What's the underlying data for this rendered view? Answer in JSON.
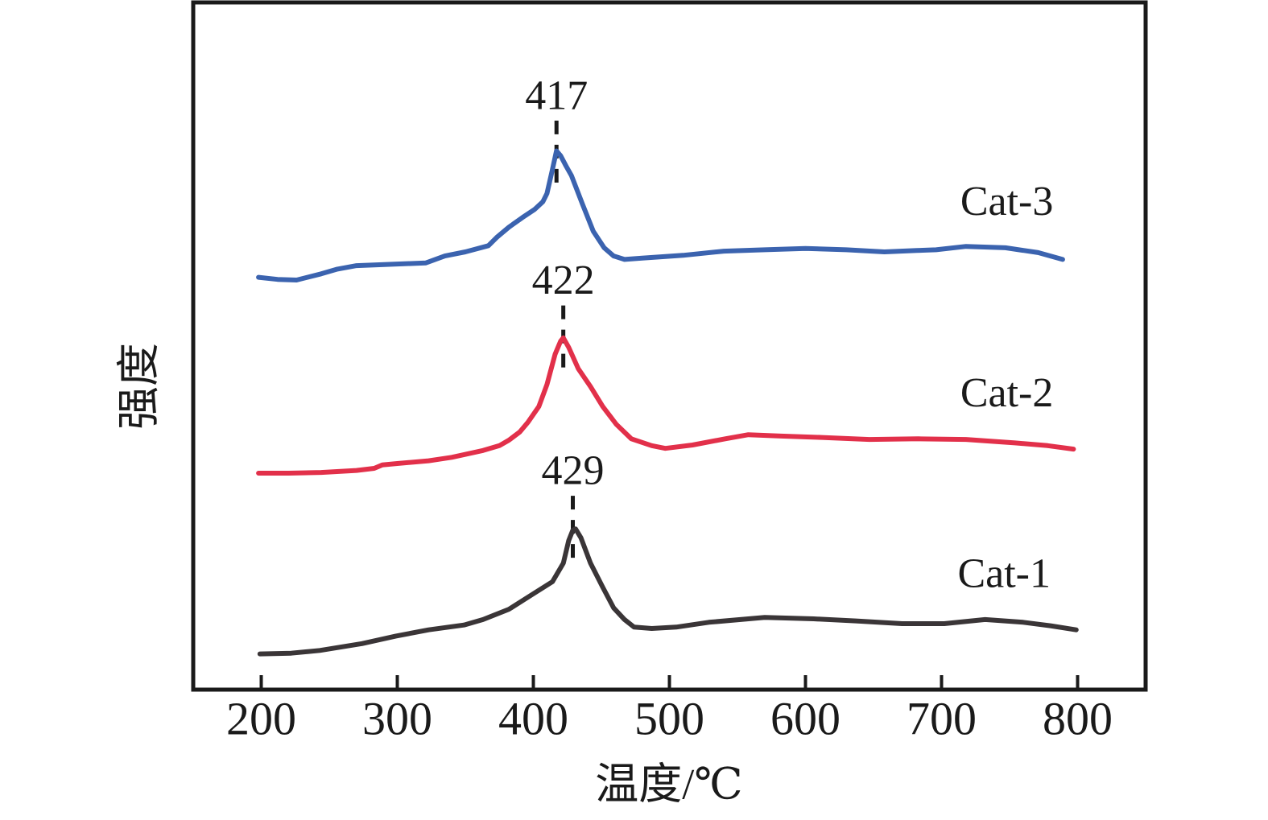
{
  "figure": {
    "background": "#ffffff",
    "axis_color": "#1a1a1a"
  },
  "chart_data": {
    "type": "line",
    "title": "",
    "xlabel": "温度/℃",
    "ylabel": "强度",
    "xlim": [
      150,
      850
    ],
    "x_ticks": [
      200,
      300,
      400,
      500,
      600,
      700,
      800
    ],
    "y_axis_note": "intensity, arbitrary units, no ticks; y values below are fraction of plot height",
    "grid": false,
    "legend_position": "labels next to each curve inside plot",
    "series": [
      {
        "name": "Cat-3",
        "color": "#3b63af",
        "peak_temp": 417,
        "label_pos": {
          "temp": 748,
          "u": 0.705
        },
        "points": [
          [
            198,
            0.6
          ],
          [
            212,
            0.597
          ],
          [
            226,
            0.596
          ],
          [
            244,
            0.605
          ],
          [
            256,
            0.612
          ],
          [
            270,
            0.617
          ],
          [
            283,
            0.618
          ],
          [
            296,
            0.619
          ],
          [
            310,
            0.62
          ],
          [
            321,
            0.621
          ],
          [
            335,
            0.631
          ],
          [
            350,
            0.637
          ],
          [
            367,
            0.646
          ],
          [
            373,
            0.658
          ],
          [
            382,
            0.673
          ],
          [
            392,
            0.687
          ],
          [
            401,
            0.699
          ],
          [
            407,
            0.71
          ],
          [
            410,
            0.722
          ],
          [
            414,
            0.757
          ],
          [
            417,
            0.784
          ],
          [
            420,
            0.777
          ],
          [
            424,
            0.762
          ],
          [
            428,
            0.748
          ],
          [
            436,
            0.707
          ],
          [
            444,
            0.667
          ],
          [
            452,
            0.643
          ],
          [
            459,
            0.631
          ],
          [
            467,
            0.626
          ],
          [
            480,
            0.628
          ],
          [
            510,
            0.632
          ],
          [
            540,
            0.638
          ],
          [
            570,
            0.64
          ],
          [
            600,
            0.642
          ],
          [
            630,
            0.64
          ],
          [
            658,
            0.637
          ],
          [
            682,
            0.639
          ],
          [
            696,
            0.64
          ],
          [
            718,
            0.645
          ],
          [
            747,
            0.643
          ],
          [
            771,
            0.636
          ],
          [
            789,
            0.626
          ]
        ]
      },
      {
        "name": "Cat-2",
        "color": "#e2304a",
        "peak_temp": 422,
        "label_pos": {
          "temp": 748,
          "u": 0.426
        },
        "points": [
          [
            198,
            0.315
          ],
          [
            220,
            0.315
          ],
          [
            244,
            0.316
          ],
          [
            270,
            0.319
          ],
          [
            283,
            0.322
          ],
          [
            289,
            0.327
          ],
          [
            300,
            0.329
          ],
          [
            323,
            0.333
          ],
          [
            340,
            0.338
          ],
          [
            363,
            0.348
          ],
          [
            375,
            0.355
          ],
          [
            382,
            0.363
          ],
          [
            390,
            0.375
          ],
          [
            396,
            0.389
          ],
          [
            404,
            0.412
          ],
          [
            410,
            0.444
          ],
          [
            416,
            0.488
          ],
          [
            420,
            0.507
          ],
          [
            422,
            0.512
          ],
          [
            426,
            0.498
          ],
          [
            433,
            0.467
          ],
          [
            442,
            0.441
          ],
          [
            451,
            0.412
          ],
          [
            461,
            0.386
          ],
          [
            472,
            0.365
          ],
          [
            487,
            0.355
          ],
          [
            497,
            0.351
          ],
          [
            517,
            0.356
          ],
          [
            541,
            0.365
          ],
          [
            558,
            0.371
          ],
          [
            582,
            0.369
          ],
          [
            612,
            0.367
          ],
          [
            647,
            0.364
          ],
          [
            683,
            0.365
          ],
          [
            718,
            0.364
          ],
          [
            754,
            0.359
          ],
          [
            778,
            0.355
          ],
          [
            797,
            0.35
          ]
        ]
      },
      {
        "name": "Cat-1",
        "color": "#3a3537",
        "peak_temp": 429,
        "label_pos": {
          "temp": 746,
          "u": 0.163
        },
        "points": [
          [
            199,
            0.052
          ],
          [
            222,
            0.053
          ],
          [
            243,
            0.057
          ],
          [
            274,
            0.067
          ],
          [
            299,
            0.078
          ],
          [
            323,
            0.087
          ],
          [
            349,
            0.094
          ],
          [
            363,
            0.102
          ],
          [
            382,
            0.117
          ],
          [
            398,
            0.137
          ],
          [
            414,
            0.157
          ],
          [
            422,
            0.184
          ],
          [
            426,
            0.217
          ],
          [
            429,
            0.232
          ],
          [
            431,
            0.234
          ],
          [
            435,
            0.221
          ],
          [
            442,
            0.184
          ],
          [
            451,
            0.149
          ],
          [
            459,
            0.119
          ],
          [
            467,
            0.102
          ],
          [
            474,
            0.091
          ],
          [
            487,
            0.089
          ],
          [
            505,
            0.091
          ],
          [
            529,
            0.098
          ],
          [
            570,
            0.105
          ],
          [
            606,
            0.103
          ],
          [
            637,
            0.1
          ],
          [
            671,
            0.096
          ],
          [
            702,
            0.096
          ],
          [
            732,
            0.102
          ],
          [
            760,
            0.098
          ],
          [
            780,
            0.093
          ],
          [
            799,
            0.087
          ]
        ]
      }
    ],
    "annotations": [
      {
        "label": "417",
        "temp": 417,
        "label_u": 0.859,
        "dash_from_u": 0.828,
        "dash_to_u": 0.728
      },
      {
        "label": "422",
        "temp": 422,
        "label_u": 0.59,
        "dash_from_u": 0.559,
        "dash_to_u": 0.462
      },
      {
        "label": "429",
        "temp": 429,
        "label_u": 0.313,
        "dash_from_u": 0.282,
        "dash_to_u": 0.187
      }
    ]
  }
}
